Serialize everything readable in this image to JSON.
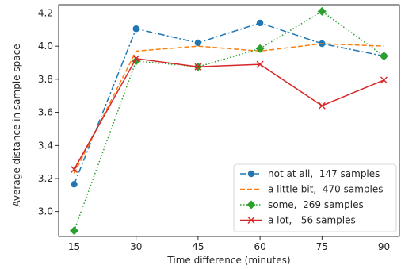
{
  "chart_data": {
    "type": "line",
    "title": "",
    "xlabel": "Time difference (minutes)",
    "ylabel": "Average distance in sample space",
    "x": [
      15,
      30,
      45,
      60,
      75,
      90
    ],
    "x_ticks": [
      "15",
      "30",
      "45",
      "60",
      "75",
      "90"
    ],
    "y_ticks": [
      "3.0",
      "3.2",
      "3.4",
      "3.6",
      "3.8",
      "4.0",
      "4.2"
    ],
    "xlim": [
      11.25,
      93.75
    ],
    "ylim": [
      2.85,
      4.25
    ],
    "grid": false,
    "legend_position": "lower right",
    "series": [
      {
        "name": "not at all,  147 samples",
        "color": "#1f77b4",
        "linestyle": "dashdot",
        "marker": "circle",
        "values": [
          3.165,
          4.105,
          4.02,
          4.14,
          4.015,
          3.94
        ]
      },
      {
        "name": "a little bit,  470 samples",
        "color": "#ff7f0e",
        "linestyle": "dashed",
        "marker": "none",
        "values": [
          3.23,
          3.97,
          4.0,
          3.97,
          4.015,
          4.0
        ]
      },
      {
        "name": "some,  269 samples",
        "color": "#2ca02c",
        "linestyle": "dotted",
        "marker": "diamond",
        "values": [
          2.885,
          3.91,
          3.875,
          3.985,
          4.21,
          3.94
        ]
      },
      {
        "name": "a lot,   56 samples",
        "color": "#d62728",
        "linestyle": "solid",
        "marker": "x",
        "values": [
          3.255,
          3.925,
          3.875,
          3.89,
          3.64,
          3.795
        ]
      }
    ]
  }
}
